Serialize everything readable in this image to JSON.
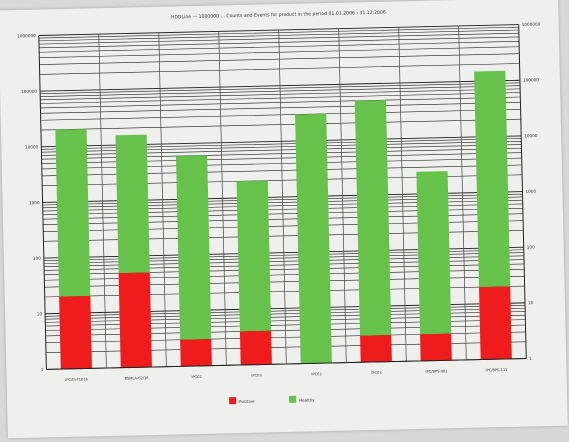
{
  "chart_data": {
    "type": "bar",
    "stacked": true,
    "y_scale": "log",
    "title": "HDDLine — 1000000 ... Counts and Events for product in the period 01.01.2006 - 31.12.2006",
    "categories": [
      "IPC/IS-T1016",
      "BSMLA-02/16",
      "IPC02",
      "IPC03",
      "IPC02",
      "IPC03",
      "IPC/BPS-002",
      "IPC/BPS-111"
    ],
    "series": [
      {
        "name": "Positive",
        "color": "#ee1c1c",
        "values": [
          2,
          5,
          0.3,
          0.4,
          0,
          0.3,
          0.3,
          2
        ]
      },
      {
        "name": "Healthy",
        "color": "#66c24a",
        "values": [
          20000,
          15000,
          6000,
          2000,
          30000,
          50000,
          2500,
          150000
        ]
      }
    ],
    "left_axis": {
      "ticks": [
        "1",
        "10",
        "100",
        "1000",
        "10000",
        "100000",
        "1000000"
      ]
    },
    "right_axis": {
      "ticks": [
        "1",
        "10",
        "100",
        "1000",
        "10000",
        "100000",
        "1000000"
      ]
    },
    "grid": true,
    "legend": "bottom"
  }
}
